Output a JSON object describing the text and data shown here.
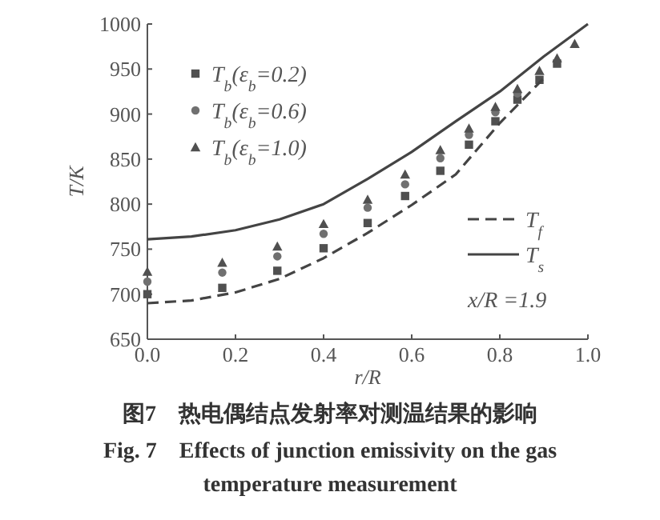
{
  "chart_data": {
    "type": "scatter",
    "title": "图7　热电偶结点发射率对测温结果的影响",
    "subtitle": "Fig. 7　Effects of junction emissivity on the gas temperature measurement",
    "xlabel": "r/R",
    "ylabel": "T/K",
    "xlim": [
      0,
      1
    ],
    "ylim": [
      650,
      1000
    ],
    "xticks": [
      {
        "value": 0,
        "label": "0.0"
      },
      0.2,
      0.4,
      0.6,
      0.8,
      {
        "value": 1,
        "label": "1.0"
      }
    ],
    "yticks": [
      650,
      700,
      750,
      800,
      850,
      900,
      950,
      1000
    ],
    "grid": false,
    "legend": "top left",
    "annotations": [
      "x/R =1.9"
    ],
    "x": [
      0,
      0.17,
      0.295,
      0.4,
      0.5,
      0.585,
      0.665,
      0.73,
      0.79,
      0.84,
      0.89,
      0.93,
      0.97
    ],
    "series": [
      {
        "name": "T$_{b}$(ε$_{b}$=0.2)",
        "color": "#505050",
        "marker": "square",
        "values": [
          700,
          707,
          726,
          751,
          779,
          809,
          837,
          866,
          892,
          916,
          938,
          956,
          null
        ]
      },
      {
        "name": "T$_{b}$(ε$_{b}$=0.6)",
        "color": "#707070",
        "marker": "circle",
        "values": [
          714,
          724,
          742,
          767,
          796,
          822,
          851,
          877,
          902,
          923,
          null,
          null,
          null
        ]
      },
      {
        "name": "T$_{b}$(ε$_{b}$=1.0)",
        "color": "#505050",
        "marker": "triangle",
        "values": [
          725,
          735,
          753,
          778,
          805,
          833,
          860,
          884,
          908,
          928,
          948,
          962,
          978
        ]
      },
      {
        "name": "T$_{f}$",
        "type": "line",
        "line_style": "dashed",
        "color": "#444444",
        "x": [
          0,
          0.1,
          0.2,
          0.3,
          0.4,
          0.5,
          0.6,
          0.7,
          0.8,
          0.85,
          0.9
        ],
        "values": [
          690,
          693,
          702,
          717,
          740,
          768,
          799,
          833,
          890,
          915,
          940
        ]
      },
      {
        "name": "T$_{s}$",
        "type": "line",
        "line_style": "solid",
        "color": "#444444",
        "x": [
          0,
          0.1,
          0.2,
          0.3,
          0.4,
          0.5,
          0.6,
          0.7,
          0.8,
          0.9,
          1.0
        ],
        "values": [
          761,
          764,
          771,
          783,
          800,
          828,
          858,
          892,
          925,
          964,
          1000
        ]
      }
    ]
  }
}
